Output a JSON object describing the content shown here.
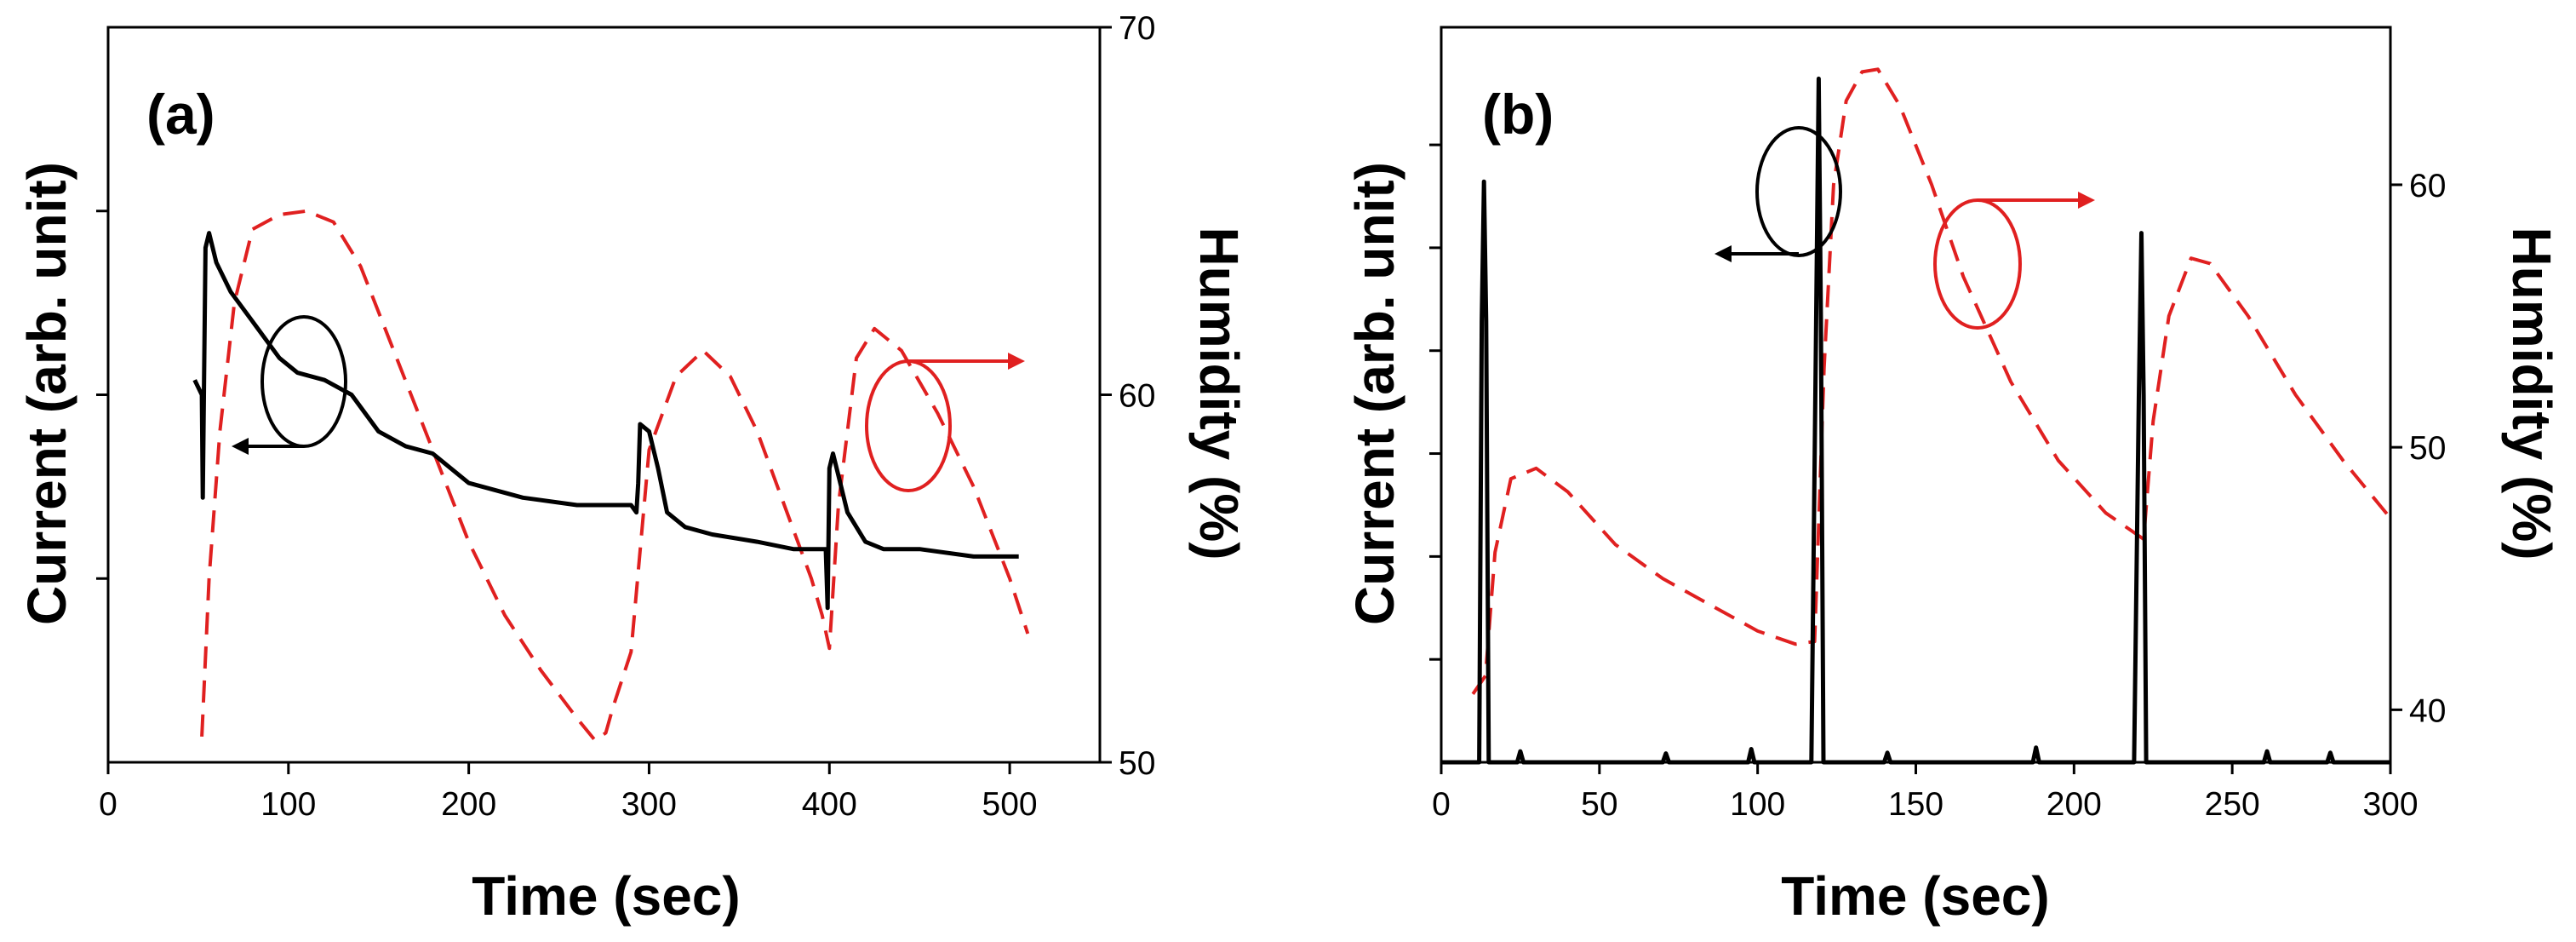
{
  "chart_data": [
    {
      "type": "line",
      "panel_label": "(a)",
      "xlabel": "Time (sec)",
      "ylabel_left": "Current (arb. unit)",
      "ylabel_right": "Humidity (%)",
      "xlim": [
        0,
        550
      ],
      "xticks": [
        0,
        100,
        200,
        300,
        400,
        500
      ],
      "xtick_labels": [
        "0",
        "100",
        "200",
        "300",
        "400",
        "500"
      ],
      "current_ylim": [
        0,
        100
      ],
      "current_minor_ticks": [
        25,
        50,
        75
      ],
      "humidity_ylim": [
        50,
        70
      ],
      "humidity_ticks": [
        50,
        60,
        70
      ],
      "humidity_tick_labels": [
        "50",
        "60",
        "70"
      ],
      "series": [
        {
          "name": "Current",
          "axis": "left",
          "color": "#000000",
          "style": "solid",
          "x": [
            48,
            52,
            52.5,
            54,
            56,
            60,
            68,
            80,
            95,
            105,
            120,
            135,
            150,
            165,
            180,
            200,
            215,
            230,
            260,
            290,
            293,
            294,
            295,
            300,
            305,
            310,
            320,
            335,
            360,
            380,
            398,
            399,
            400,
            402,
            405,
            410,
            420,
            430,
            450,
            480,
            505
          ],
          "y": [
            52,
            50,
            36,
            70,
            72,
            68,
            64,
            60,
            55,
            53,
            52,
            50,
            45,
            43,
            42,
            38,
            37,
            36,
            35,
            35,
            34,
            38,
            46,
            45,
            40,
            34,
            32,
            31,
            30,
            29,
            29,
            21,
            40,
            42,
            39,
            34,
            30,
            29,
            29,
            28,
            28
          ]
        },
        {
          "name": "Humidity",
          "axis": "right",
          "color": "#e02020",
          "style": "dashed",
          "x": [
            52,
            56,
            62,
            70,
            80,
            95,
            110,
            125,
            140,
            160,
            180,
            200,
            220,
            240,
            260,
            270,
            276,
            280,
            290,
            300,
            315,
            330,
            345,
            360,
            375,
            390,
            396,
            400,
            405,
            415,
            425,
            440,
            460,
            480,
            500,
            510
          ],
          "y": [
            50.7,
            55,
            59,
            62.5,
            64.5,
            64.9,
            65,
            64.7,
            63.5,
            61,
            58.5,
            56,
            54,
            52.5,
            51.2,
            50.6,
            50.8,
            51.5,
            53,
            58.5,
            60.5,
            61.2,
            60.5,
            59,
            57,
            55,
            54,
            53.1,
            57,
            61,
            61.8,
            61.2,
            59.5,
            57.5,
            55,
            53.5
          ]
        }
      ],
      "annotations": [
        {
          "text": "",
          "type": "circle-arrow-left",
          "target": "Current"
        },
        {
          "text": "",
          "type": "circle-arrow-right",
          "target": "Humidity"
        }
      ]
    },
    {
      "type": "line",
      "panel_label": "(b)",
      "xlabel": "Time (sec)",
      "ylabel_left": "Current (arb. unit)",
      "ylabel_right": "Humidity (%)",
      "xlim": [
        0,
        300
      ],
      "xticks": [
        0,
        50,
        100,
        150,
        200,
        250,
        300
      ],
      "xtick_labels": [
        "0",
        "50",
        "100",
        "150",
        "200",
        "250",
        "300"
      ],
      "current_ylim": [
        0,
        100
      ],
      "current_minor_ticks": [
        14,
        28,
        42,
        56,
        70,
        84
      ],
      "humidity_ylim": [
        38,
        66
      ],
      "humidity_ticks": [
        40,
        50,
        60
      ],
      "humidity_tick_labels": [
        "40",
        "50",
        "60"
      ],
      "series": [
        {
          "name": "Current",
          "axis": "left",
          "color": "#000000",
          "style": "solid",
          "x": [
            0,
            12,
            12.8,
            13.5,
            14.2,
            15,
            24,
            25,
            26,
            70,
            71,
            72,
            97,
            98,
            99,
            117,
            118.5,
            119.3,
            120,
            120.8,
            122,
            140,
            141,
            142,
            187,
            188,
            189,
            219,
            220.5,
            221.3,
            222,
            222.8,
            224,
            260,
            261,
            262,
            280,
            281,
            282,
            300
          ],
          "y": [
            0,
            0,
            60,
            79,
            60,
            0,
            0,
            1.5,
            0,
            0,
            1.2,
            0,
            0,
            1.8,
            0,
            0,
            60,
            93,
            60,
            0,
            0,
            0,
            1.3,
            0,
            0,
            2,
            0,
            0,
            50,
            72,
            50,
            0,
            0,
            0,
            1.5,
            0,
            0,
            1.3,
            0,
            0
          ]
        },
        {
          "name": "Humidity",
          "axis": "right",
          "color": "#e02020",
          "style": "dashed",
          "x": [
            10,
            14,
            17,
            22,
            30,
            40,
            55,
            70,
            85,
            100,
            112,
            118,
            121,
            124,
            128,
            133,
            138,
            145,
            155,
            165,
            180,
            195,
            210,
            222,
            225,
            230,
            237,
            243,
            255,
            270,
            285,
            300
          ],
          "y": [
            40.6,
            41.3,
            46,
            48.8,
            49.2,
            48.3,
            46.3,
            45,
            44,
            43,
            42.5,
            42.6,
            53,
            60,
            63.2,
            64.3,
            64.4,
            63,
            60,
            56.5,
            52.5,
            49.5,
            47.5,
            46.5,
            51,
            55,
            57.2,
            57,
            55,
            52,
            49.5,
            47.3
          ]
        }
      ],
      "annotations": [
        {
          "text": "",
          "type": "circle-arrow-left",
          "target": "Current"
        },
        {
          "text": "",
          "type": "circle-arrow-right",
          "target": "Humidity"
        }
      ]
    }
  ]
}
